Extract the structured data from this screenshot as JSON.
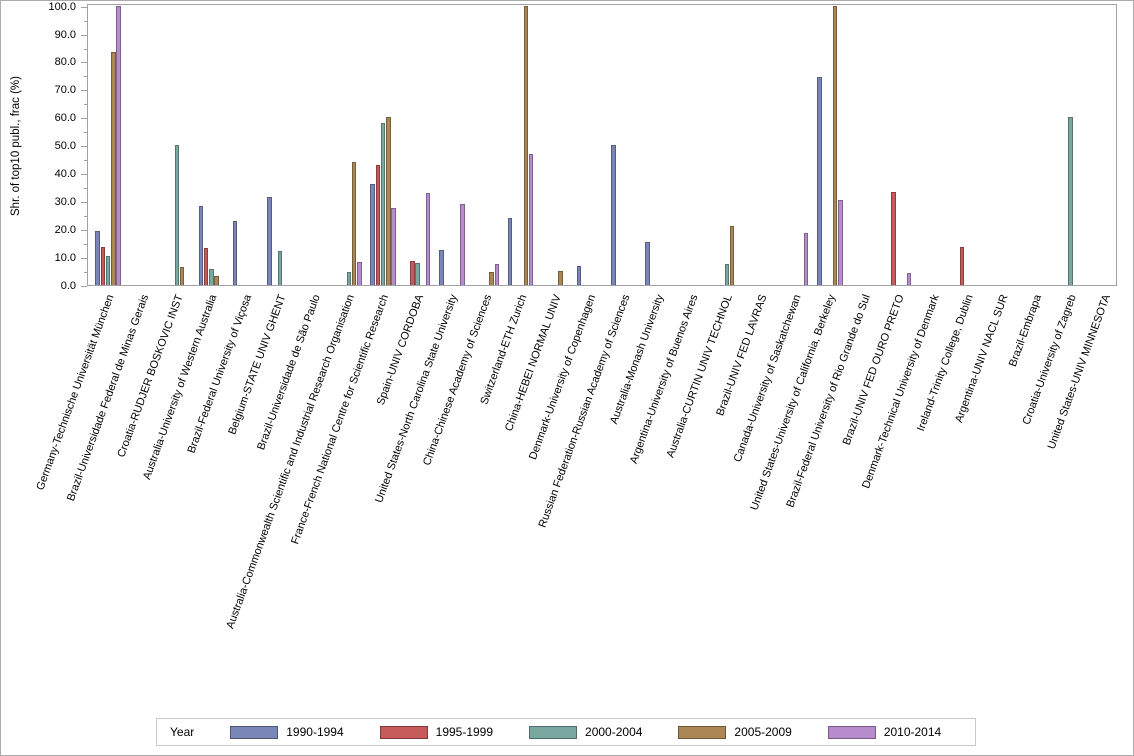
{
  "chart_data": {
    "type": "bar",
    "title": "",
    "xlabel": "",
    "ylabel": "Shr. of top10 publ., frac (%)",
    "ylim": [
      0,
      100
    ],
    "y_tick_labels": [
      "0.0",
      "10.0",
      "20.0",
      "30.0",
      "40.0",
      "50.0",
      "60.0",
      "70.0",
      "80.0",
      "90.0",
      "100.0"
    ],
    "grid": false,
    "legend_title": "Year",
    "legend_position": "bottom",
    "series": [
      {
        "name": "1990-1994",
        "color": "#7a85b8"
      },
      {
        "name": "1995-1999",
        "color": "#c65a5a"
      },
      {
        "name": "2000-2004",
        "color": "#79a8a1"
      },
      {
        "name": "2005-2009",
        "color": "#aa8755"
      },
      {
        "name": "2010-2014",
        "color": "#b68ccd"
      }
    ],
    "categories": [
      "Germany-Technische Universität München",
      "Brazil-Universidade Federal de Minas Gerais",
      "Croatia-RUDJER BOSKOVIC INST",
      "Australia-University of Western Australia",
      "Brazil-Federal University of Viçosa",
      "Belgium-STATE UNIV GHENT",
      "Brazil-Universidade de São Paulo",
      "Australia-Commonwealth Scientific and Industrial Research Organisation",
      "France-French National Centre for Scientific Research",
      "Spain-UNIV CORDOBA",
      "United States-North Carolina State University",
      "China-Chinese Academy of Sciences",
      "Switzerland-ETH Zurich",
      "China-HEBEI NORMAL UNIV",
      "Denmark-University of Copenhagen",
      "Russian Federation-Russian Academy of Sciences",
      "Australia-Monash University",
      "Argentina-University of Buenos Aires",
      "Australia-CURTIN UNIV TECHNOL",
      "Brazil-UNIV FED LAVRAS",
      "Canada-University of Saskatchewan",
      "United States-University of California, Berkeley",
      "Brazil-Federal University of Rio Grande do Sul",
      "Brazil-UNIV FED OURO PRETO",
      "Denmark-Technical University of Denmark",
      "Ireland-Trinity College, Dublin",
      "Argentina-UNIV NACL SUR",
      "Brazil-Embrapa",
      "Croatia-University of Zagreb",
      "United States-UNIV MINNESOTA"
    ],
    "values": [
      [
        19.4,
        13.6,
        10.5,
        83.3,
        100.0
      ],
      [
        null,
        null,
        null,
        null,
        null
      ],
      [
        null,
        null,
        50.0,
        6.4,
        null
      ],
      [
        28.4,
        13.1,
        5.6,
        3.2,
        null
      ],
      [
        23.0,
        null,
        null,
        null,
        null
      ],
      [
        31.4,
        null,
        12.3,
        null,
        null
      ],
      [
        null,
        null,
        null,
        null,
        null
      ],
      [
        null,
        null,
        4.8,
        44.1,
        8.4
      ],
      [
        36.2,
        43.0,
        57.9,
        60.0,
        27.5
      ],
      [
        null,
        8.7,
        7.8,
        null,
        33.0
      ],
      [
        12.5,
        null,
        null,
        null,
        28.9
      ],
      [
        null,
        null,
        null,
        4.8,
        7.4
      ],
      [
        24.1,
        null,
        null,
        100.0,
        46.9
      ],
      [
        null,
        null,
        null,
        5.0,
        null
      ],
      [
        6.9,
        null,
        null,
        null,
        null
      ],
      [
        50.0,
        null,
        null,
        null,
        null
      ],
      [
        15.5,
        null,
        null,
        null,
        null
      ],
      [
        null,
        null,
        null,
        null,
        null
      ],
      [
        null,
        null,
        7.4,
        21.1,
        null
      ],
      [
        null,
        null,
        null,
        null,
        null
      ],
      [
        null,
        null,
        null,
        null,
        18.7
      ],
      [
        74.6,
        null,
        null,
        100.0,
        30.4
      ],
      [
        null,
        null,
        null,
        null,
        null
      ],
      [
        null,
        33.2,
        null,
        null,
        4.2
      ],
      [
        null,
        null,
        null,
        null,
        null
      ],
      [
        null,
        13.7,
        null,
        null,
        null
      ],
      [
        null,
        null,
        null,
        null,
        null
      ],
      [
        null,
        null,
        null,
        null,
        null
      ],
      [
        null,
        null,
        60.0,
        null,
        null
      ],
      [
        null,
        null,
        null,
        null,
        null
      ]
    ]
  }
}
